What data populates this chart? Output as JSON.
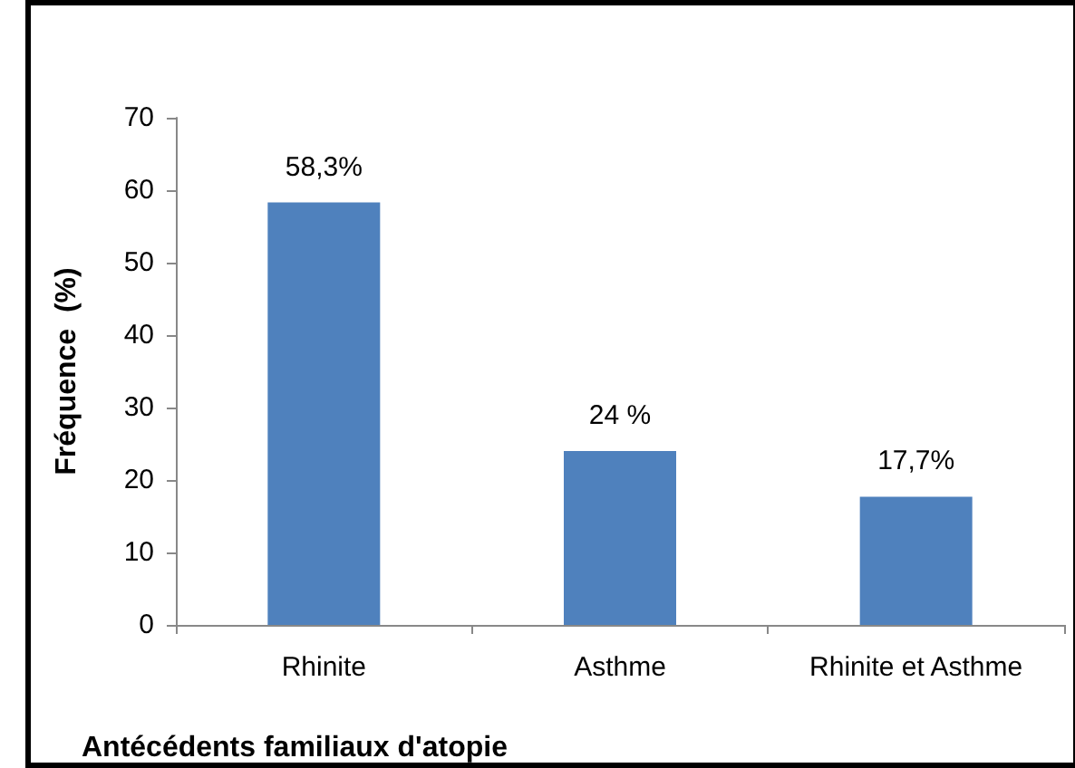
{
  "chart_data": {
    "type": "bar",
    "xlabel": "Antécédents familiaux d'atopie",
    "ylabel": "Fréquence  (%)",
    "categories": [
      "Rhinite",
      "Asthme",
      "Rhinite et Asthme"
    ],
    "values": [
      58.3,
      24,
      17.7
    ],
    "value_labels": [
      "58,3%",
      "24 %",
      "17,7%"
    ],
    "color": "#4f81bd",
    "ylim": [
      0,
      70
    ],
    "yticks": [
      0,
      10,
      20,
      30,
      40,
      50,
      60,
      70
    ],
    "grid": false
  }
}
